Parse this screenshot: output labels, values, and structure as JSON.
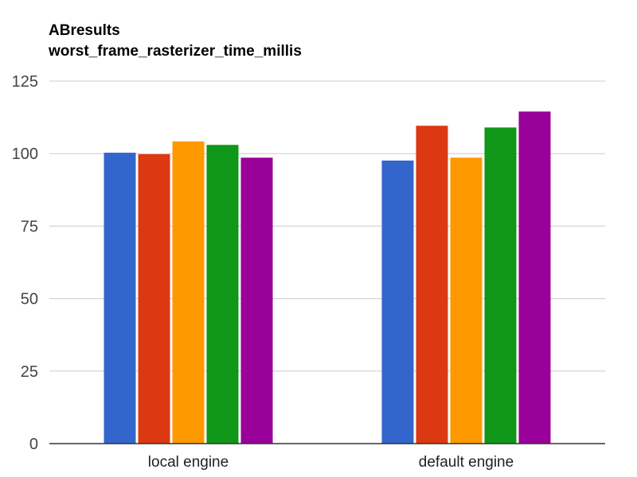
{
  "chart_data": {
    "type": "bar",
    "title": "ABresults",
    "subtitle": "worst_frame_rasterizer_time_millis",
    "xlabel": "",
    "ylabel": "",
    "categories": [
      "local engine",
      "default engine"
    ],
    "series": [
      {
        "color": "#3366cc",
        "values": [
          100.3,
          97.6
        ]
      },
      {
        "color": "#dc3912",
        "values": [
          99.8,
          109.6
        ]
      },
      {
        "color": "#ff9900",
        "values": [
          104.2,
          98.6
        ]
      },
      {
        "color": "#109618",
        "values": [
          103.0,
          109.0
        ]
      },
      {
        "color": "#990099",
        "values": [
          98.6,
          114.5
        ]
      }
    ],
    "ylim": [
      0,
      125
    ],
    "yticks": [
      0,
      25,
      50,
      75,
      100,
      125
    ],
    "grid": true,
    "legend": "none"
  }
}
